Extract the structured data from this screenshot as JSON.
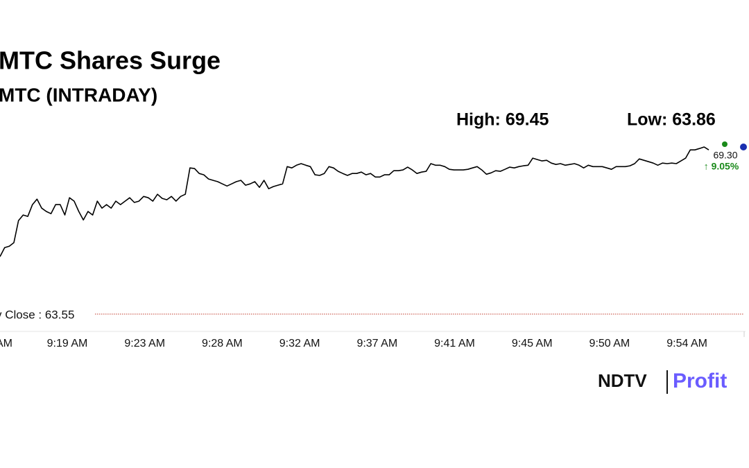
{
  "chart_data": {
    "type": "line",
    "title": "MTC Shares Surge",
    "subtitle": "MTC (INTRADAY)",
    "high_label": "High: 69.45",
    "low_label": "Low: 63.86",
    "last_label": "69.30",
    "change_label": "↑ 9.05%",
    "prev_close_label": "v Close : 63.55",
    "logo": {
      "left": "NDTV",
      "right": "Profit"
    },
    "xtick_labels": [
      "AM",
      "9:19 AM",
      "9:23 AM",
      "9:28 AM",
      "9:32 AM",
      "9:37 AM",
      "9:41 AM",
      "9:45 AM",
      "9:50 AM",
      "9:54 AM"
    ],
    "color": "#000000",
    "ylim": [
      60.93,
      70.05
    ],
    "values": [
      63.86,
      64.32,
      64.39,
      64.57,
      65.7,
      65.98,
      65.91,
      66.51,
      66.79,
      66.33,
      66.16,
      66.05,
      66.51,
      66.51,
      65.98,
      66.86,
      66.69,
      66.16,
      65.73,
      66.16,
      65.98,
      66.69,
      66.33,
      66.51,
      66.33,
      66.69,
      66.51,
      66.69,
      66.86,
      66.62,
      66.69,
      66.93,
      66.86,
      66.69,
      67.04,
      66.83,
      66.76,
      66.93,
      66.69,
      66.93,
      67.04,
      68.38,
      68.35,
      68.1,
      68.03,
      67.82,
      67.75,
      67.68,
      67.57,
      67.46,
      67.57,
      67.68,
      67.75,
      67.5,
      67.57,
      67.68,
      67.39,
      67.75,
      67.32,
      67.43,
      67.5,
      67.57,
      68.45,
      68.38,
      68.52,
      68.6,
      68.52,
      68.45,
      68.03,
      68.0,
      68.1,
      68.45,
      68.38,
      68.21,
      68.1,
      68.0,
      68.1,
      68.1,
      68.17,
      68.03,
      68.1,
      67.92,
      67.92,
      68.03,
      68.03,
      68.24,
      68.24,
      68.28,
      68.42,
      68.28,
      68.1,
      68.17,
      68.21,
      68.6,
      68.52,
      68.52,
      68.45,
      68.31,
      68.28,
      68.28,
      68.28,
      68.31,
      68.38,
      68.45,
      68.28,
      68.06,
      68.13,
      68.24,
      68.21,
      68.31,
      68.42,
      68.38,
      68.45,
      68.49,
      68.52,
      68.88,
      68.81,
      68.74,
      68.77,
      68.63,
      68.56,
      68.6,
      68.52,
      68.56,
      68.6,
      68.52,
      68.38,
      68.52,
      68.45,
      68.45,
      68.45,
      68.38,
      68.31,
      68.45,
      68.45,
      68.45,
      68.49,
      68.6,
      68.84,
      68.77,
      68.7,
      68.63,
      68.52,
      68.63,
      68.6,
      68.63,
      68.6,
      68.74,
      68.88,
      69.3,
      69.3,
      69.37,
      69.45,
      69.3
    ]
  }
}
